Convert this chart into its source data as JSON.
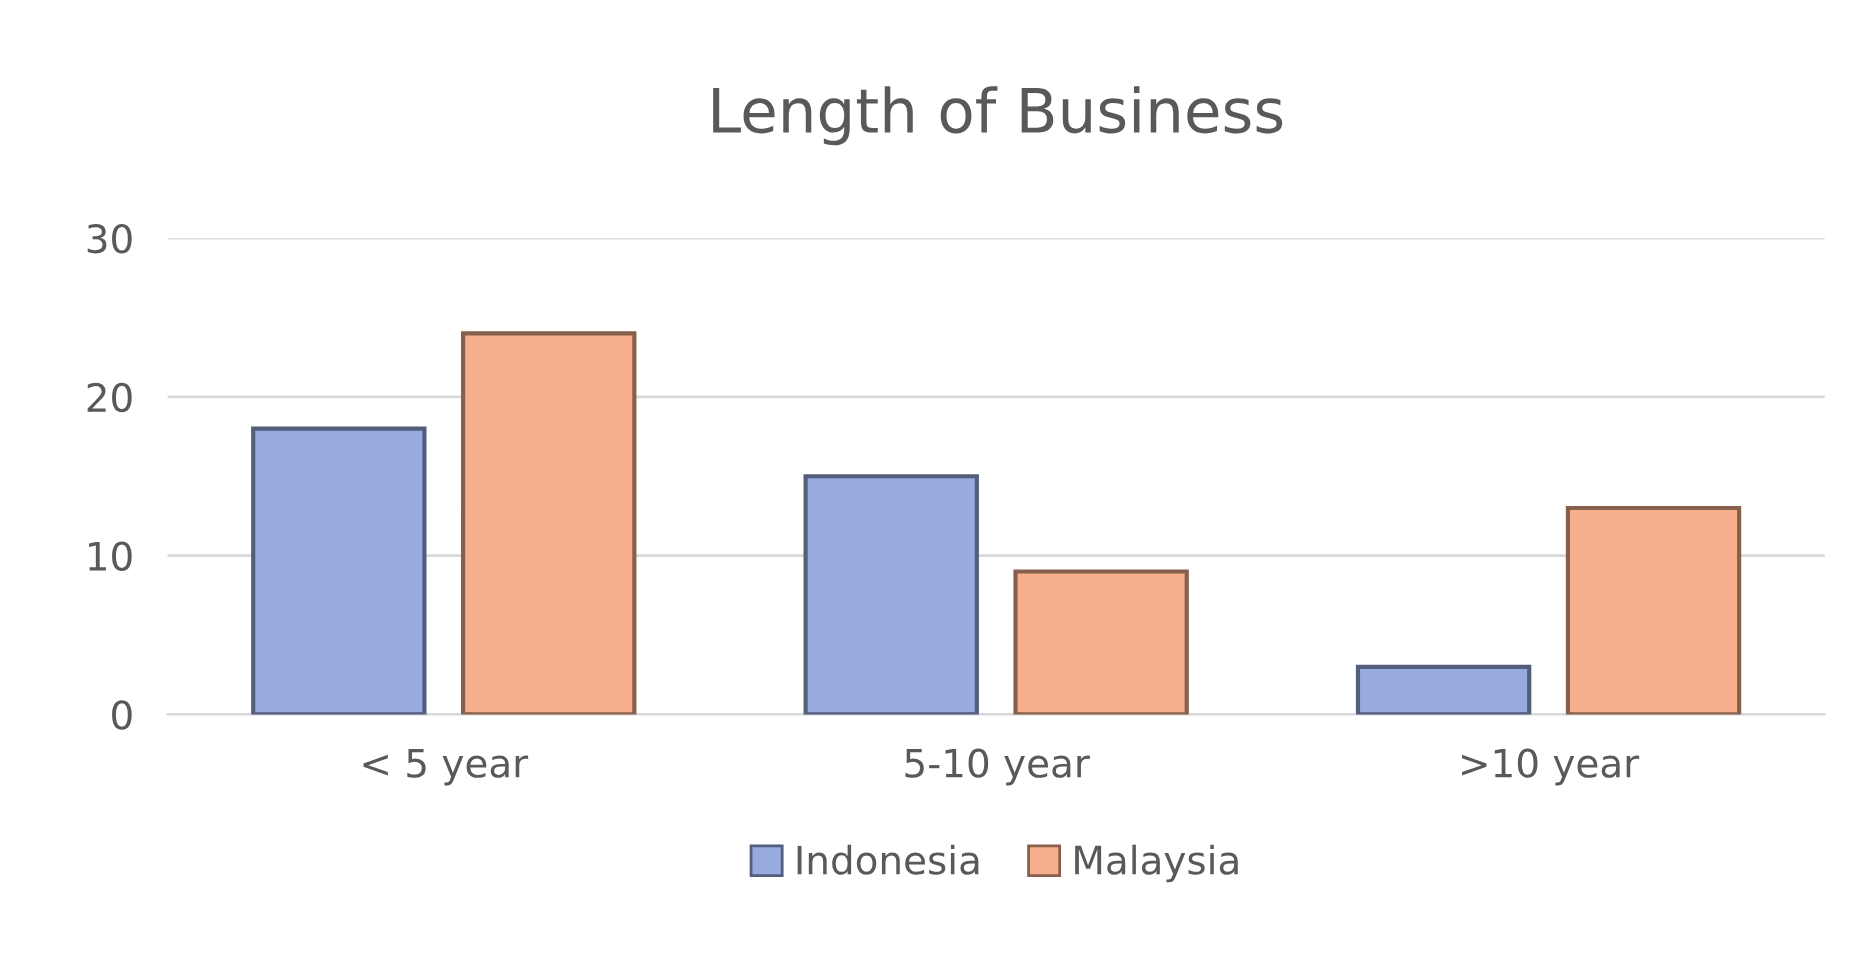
{
  "chart_data": {
    "type": "bar",
    "title": "Length of Business",
    "categories": [
      "< 5 year",
      "5-10 year",
      ">10 year"
    ],
    "series": [
      {
        "name": "Indonesia",
        "color": "#98abe0",
        "values": [
          18,
          15,
          3
        ]
      },
      {
        "name": "Malaysia",
        "color": "#f6ae8c",
        "values": [
          24,
          9,
          13
        ]
      }
    ],
    "ylim": [
      0,
      30
    ],
    "yticks": [
      0,
      10,
      20,
      30
    ],
    "grid": "y",
    "legend": "bottom"
  }
}
